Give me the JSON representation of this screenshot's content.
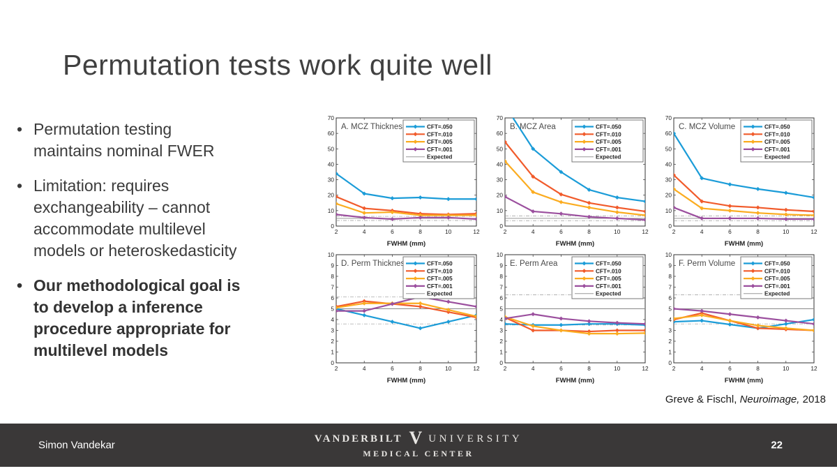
{
  "slide": {
    "title": "Permutation tests work quite well",
    "bullets": [
      {
        "text": "Permutation testing\nmaintains nominal FWER",
        "bold": false
      },
      {
        "text": "Limitation: requires\nexchangeability – cannot\naccommodate multilevel\nmodels or heteroskedasticity",
        "bold": false
      },
      {
        "text": "Our methodological goal is\nto develop a inference\nprocedure appropriate for\nmultilevel models",
        "bold": true
      }
    ],
    "citation": {
      "prefix": "Greve & Fischl, ",
      "italic": "Neuroimage,",
      "suffix": " 2018"
    }
  },
  "footer": {
    "author": "Simon Vandekar",
    "page_number": "22",
    "bar_color": "#3a3838",
    "logo": {
      "word1": "VANDERBILT",
      "mark": "V",
      "word2": "UNIVERSITY",
      "line2": "MEDICAL CENTER"
    }
  },
  "chart_style": {
    "colors": {
      "cft050": "#1b9cd8",
      "cft010": "#f15b2b",
      "cft005": "#fbac20",
      "cft001": "#9b4f9e",
      "expected": "#999999"
    },
    "legend_labels": [
      "CFT=.050",
      "CFT=.010",
      "CFT=.005",
      "CFT=.001",
      "Expected"
    ]
  },
  "chart_data": [
    {
      "type": "line",
      "title": "A. MCZ Thickness",
      "xlabel": "FWHM (mm)",
      "x": [
        2,
        4,
        6,
        8,
        10,
        12
      ],
      "ylim": [
        0,
        70
      ],
      "ytick_step": 10,
      "expected": {
        "solid": 5,
        "dashed": [
          6.3,
          3.6
        ]
      },
      "series": [
        {
          "name": "CFT=.050",
          "color": "#1b9cd8",
          "values": [
            34,
            21,
            18,
            18.5,
            17.5,
            17.5
          ]
        },
        {
          "name": "CFT=.010",
          "color": "#f15b2b",
          "values": [
            19,
            11.5,
            10,
            8,
            7.5,
            8
          ]
        },
        {
          "name": "CFT=.005",
          "color": "#fbac20",
          "values": [
            14.5,
            8.5,
            9,
            7,
            7,
            7
          ]
        },
        {
          "name": "CFT=.001",
          "color": "#9b4f9e",
          "values": [
            7.5,
            5.5,
            4.5,
            5.5,
            5.5,
            4.5
          ]
        }
      ]
    },
    {
      "type": "line",
      "title": "B. MCZ Area",
      "xlabel": "FWHM (mm)",
      "x": [
        2,
        4,
        6,
        8,
        10,
        12
      ],
      "ylim": [
        0,
        70
      ],
      "ytick_step": 10,
      "expected": {
        "solid": 5,
        "dashed": [
          6.5,
          3.5
        ]
      },
      "series": [
        {
          "name": "CFT=.050",
          "color": "#1b9cd8",
          "values": [
            78,
            50,
            35,
            23.5,
            18.5,
            16
          ]
        },
        {
          "name": "CFT=.010",
          "color": "#f15b2b",
          "values": [
            54.5,
            32,
            20.5,
            15,
            12,
            9.5
          ]
        },
        {
          "name": "CFT=.005",
          "color": "#fbac20",
          "values": [
            42,
            22,
            15.5,
            12,
            9,
            7
          ]
        },
        {
          "name": "CFT=.001",
          "color": "#9b4f9e",
          "values": [
            19,
            9.5,
            8,
            6,
            5,
            4
          ]
        }
      ]
    },
    {
      "type": "line",
      "title": "C. MCZ Volume",
      "xlabel": "FWHM (mm)",
      "x": [
        2,
        4,
        6,
        8,
        10,
        12
      ],
      "ylim": [
        0,
        70
      ],
      "ytick_step": 10,
      "expected": {
        "solid": 5,
        "dashed": [
          6.5,
          3.5
        ]
      },
      "series": [
        {
          "name": "CFT=.050",
          "color": "#1b9cd8",
          "values": [
            60,
            31,
            27,
            24,
            21.5,
            18.5
          ]
        },
        {
          "name": "CFT=.010",
          "color": "#f15b2b",
          "values": [
            33,
            16,
            13,
            12,
            10.5,
            9.5
          ]
        },
        {
          "name": "CFT=.005",
          "color": "#fbac20",
          "values": [
            24,
            11.5,
            10,
            8.5,
            7.5,
            7
          ]
        },
        {
          "name": "CFT=.001",
          "color": "#9b4f9e",
          "values": [
            12,
            5,
            5,
            5,
            4.5,
            4.5
          ]
        }
      ]
    },
    {
      "type": "line",
      "title": "D. Perm Thickness",
      "xlabel": "FWHM (mm)",
      "x": [
        2,
        4,
        6,
        8,
        10,
        12
      ],
      "ylim": [
        0,
        10
      ],
      "ytick_step": 1,
      "expected": {
        "solid": 5,
        "dashed": [
          6.1,
          3.6
        ]
      },
      "series": [
        {
          "name": "CFT=.050",
          "color": "#1b9cd8",
          "values": [
            5.0,
            4.4,
            3.8,
            3.2,
            3.8,
            4.4
          ]
        },
        {
          "name": "CFT=.010",
          "color": "#f15b2b",
          "values": [
            5.2,
            5.7,
            5.45,
            5.2,
            4.7,
            4.2
          ]
        },
        {
          "name": "CFT=.005",
          "color": "#fbac20",
          "values": [
            5.1,
            5.5,
            5.5,
            5.5,
            4.9,
            4.3
          ]
        },
        {
          "name": "CFT=.001",
          "color": "#9b4f9e",
          "values": [
            4.8,
            4.8,
            5.45,
            6.1,
            5.65,
            5.2
          ]
        }
      ]
    },
    {
      "type": "line",
      "title": "E. Perm Area",
      "xlabel": "FWHM (mm)",
      "x": [
        2,
        4,
        6,
        8,
        10,
        12
      ],
      "ylim": [
        0,
        10
      ],
      "ytick_step": 1,
      "expected": {
        "solid": 5,
        "dashed": [
          6.3,
          3.5
        ]
      },
      "series": [
        {
          "name": "CFT=.050",
          "color": "#1b9cd8",
          "values": [
            3.6,
            3.5,
            3.5,
            3.6,
            3.6,
            3.5
          ]
        },
        {
          "name": "CFT=.010",
          "color": "#f15b2b",
          "values": [
            4.2,
            3.0,
            3.0,
            2.9,
            3.0,
            3.0
          ]
        },
        {
          "name": "CFT=.005",
          "color": "#fbac20",
          "values": [
            4.25,
            3.4,
            3.0,
            2.7,
            2.7,
            2.75
          ]
        },
        {
          "name": "CFT=.001",
          "color": "#9b4f9e",
          "values": [
            4.1,
            4.5,
            4.1,
            3.85,
            3.7,
            3.6
          ]
        }
      ]
    },
    {
      "type": "line",
      "title": "F. Perm Volume",
      "xlabel": "FWHM (mm)",
      "x": [
        2,
        4,
        6,
        8,
        10,
        12
      ],
      "ylim": [
        0,
        10
      ],
      "ytick_step": 1,
      "expected": {
        "solid": 5,
        "dashed": [
          6.3,
          3.6
        ]
      },
      "series": [
        {
          "name": "CFT=.050",
          "color": "#1b9cd8",
          "values": [
            3.8,
            3.9,
            3.55,
            3.2,
            3.6,
            4.0
          ]
        },
        {
          "name": "CFT=.010",
          "color": "#f15b2b",
          "values": [
            4.0,
            4.6,
            3.9,
            3.2,
            3.1,
            3.0
          ]
        },
        {
          "name": "CFT=.005",
          "color": "#fbac20",
          "values": [
            4.1,
            4.4,
            3.9,
            3.45,
            3.2,
            3.0
          ]
        },
        {
          "name": "CFT=.001",
          "color": "#9b4f9e",
          "values": [
            5.0,
            4.8,
            4.5,
            4.2,
            3.9,
            3.6
          ]
        }
      ]
    }
  ]
}
